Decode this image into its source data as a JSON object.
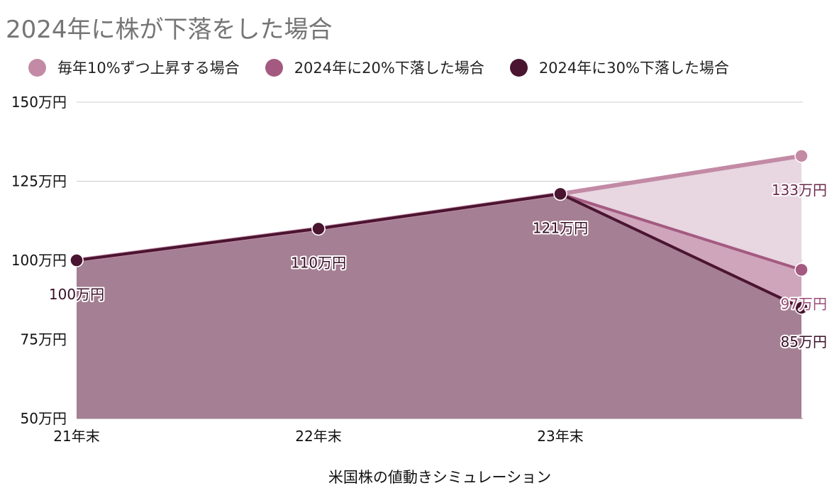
{
  "chart_data": {
    "type": "area",
    "title": "2024年に株が下落をした場合",
    "xlabel": "米国株の値動きシミュレーション",
    "ylabel": "",
    "categories": [
      "21年末",
      "22年末",
      "23年末",
      ""
    ],
    "y_ticks": [
      "50万円",
      "75万円",
      "100万円",
      "125万円",
      "150万円"
    ],
    "ylim": [
      50,
      150
    ],
    "unit": "万円",
    "grid": true,
    "legend_position": "top",
    "series": [
      {
        "name": "毎年10%ずつ上昇する場合",
        "values": [
          100,
          110,
          121,
          133
        ],
        "color": "#c28aa5",
        "fill": "#e8d6e1",
        "label_color": "#6b2a4a",
        "labels": [
          "",
          "",
          "",
          "133万円"
        ]
      },
      {
        "name": "2024年に20%下落した場合",
        "values": [
          100,
          110,
          121,
          97
        ],
        "color": "#a45a80",
        "fill": "#cfa5bb",
        "label_color": "#9a4c74",
        "labels": [
          "",
          "",
          "",
          "97万円"
        ]
      },
      {
        "name": "2024年に30%下落した場合",
        "values": [
          100,
          110,
          121,
          85
        ],
        "color": "#4a1530",
        "fill": "#a57f93",
        "label_color": "#3a0f25",
        "labels": [
          "100万円",
          "110万円",
          "121万円",
          "85万円"
        ]
      }
    ]
  }
}
